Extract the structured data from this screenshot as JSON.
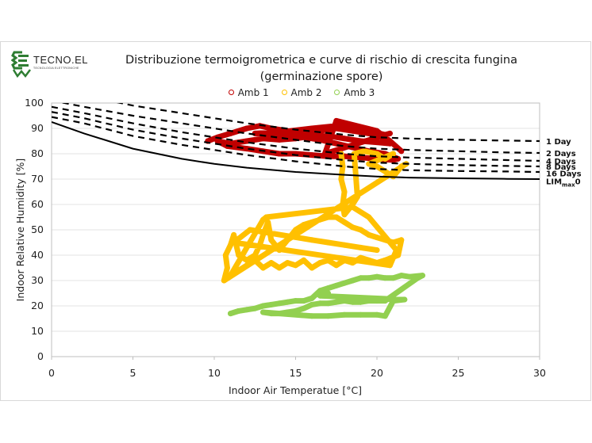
{
  "logo": {
    "name": "TECNO.EL",
    "subtitle": "TECNOLOGIA ELETTRONICHE",
    "color": "#2e7d32"
  },
  "chart_data": {
    "type": "scatter",
    "title": "Distribuzione termoigrometrica e curve di rischio di crescita fungina",
    "subtitle": "(germinazione spore)",
    "xlabel": "Indoor Air Temperatue [°C]",
    "ylabel": "Indoor Relative Humidity [%]",
    "xlim": [
      0,
      30
    ],
    "ylim": [
      0,
      100
    ],
    "xticks": [
      0,
      5,
      10,
      15,
      20,
      25,
      30
    ],
    "yticks": [
      0,
      10,
      20,
      30,
      40,
      50,
      60,
      70,
      80,
      90,
      100
    ],
    "grid": "horizontal",
    "legend_position": "top-center",
    "series": [
      {
        "name": "Amb 1",
        "color": "#c00000",
        "marker": "open-circle",
        "points": [
          [
            9.6,
            85
          ],
          [
            10.2,
            86.5
          ],
          [
            11,
            88
          ],
          [
            12,
            90
          ],
          [
            12.8,
            91
          ],
          [
            13.5,
            90
          ],
          [
            14.5,
            89
          ],
          [
            15.5,
            88.5
          ],
          [
            16.5,
            89
          ],
          [
            17.5,
            90
          ],
          [
            18.5,
            89
          ],
          [
            19.5,
            88
          ],
          [
            20.5,
            86
          ],
          [
            20.8,
            84
          ],
          [
            20,
            84.5
          ],
          [
            19,
            85
          ],
          [
            18,
            86
          ],
          [
            17,
            87
          ],
          [
            16,
            87
          ],
          [
            15,
            86
          ],
          [
            14,
            85.5
          ],
          [
            13,
            86
          ],
          [
            12,
            85
          ],
          [
            11,
            84
          ],
          [
            10.2,
            85
          ],
          [
            10.8,
            83
          ],
          [
            12,
            82
          ],
          [
            13,
            81
          ],
          [
            14,
            80
          ],
          [
            15,
            80
          ],
          [
            16,
            79.5
          ],
          [
            17,
            79
          ],
          [
            18,
            79
          ],
          [
            19,
            78.5
          ],
          [
            20,
            78
          ],
          [
            21,
            77.5
          ],
          [
            21.3,
            78
          ],
          [
            20.5,
            80
          ],
          [
            19.5,
            81
          ],
          [
            18.5,
            82.5
          ],
          [
            17.5,
            84
          ],
          [
            16.5,
            85.5
          ],
          [
            15.5,
            86.5
          ],
          [
            14.5,
            87
          ],
          [
            13.5,
            87.5
          ],
          [
            12.5,
            88
          ],
          [
            14,
            88.5
          ],
          [
            16,
            90
          ],
          [
            17.5,
            91
          ],
          [
            18.5,
            90
          ],
          [
            19.5,
            89
          ],
          [
            20.5,
            87.5
          ],
          [
            20.8,
            88
          ],
          [
            19.8,
            86
          ],
          [
            18.8,
            84
          ],
          [
            17.8,
            82
          ],
          [
            16.8,
            80
          ],
          [
            17.5,
            93
          ],
          [
            20,
            89
          ],
          [
            20.8,
            85
          ],
          [
            21.5,
            81
          ]
        ]
      },
      {
        "name": "Amb 2",
        "color": "#ffc000",
        "marker": "open-circle",
        "points": [
          [
            17.8,
            80
          ],
          [
            17.9,
            75
          ],
          [
            17.8,
            70
          ],
          [
            18,
            65
          ],
          [
            17.9,
            60
          ],
          [
            18,
            56
          ],
          [
            18.5,
            60
          ],
          [
            18.8,
            63
          ],
          [
            18.6,
            80
          ],
          [
            19.2,
            81
          ],
          [
            20,
            80
          ],
          [
            20.5,
            78
          ],
          [
            21,
            80
          ],
          [
            19.5,
            76
          ],
          [
            20,
            75
          ],
          [
            20.5,
            73
          ],
          [
            21,
            71
          ],
          [
            21.5,
            75
          ],
          [
            21.8,
            76
          ],
          [
            10.6,
            30
          ],
          [
            10.8,
            35
          ],
          [
            10.7,
            40
          ],
          [
            11,
            44
          ],
          [
            11.2,
            48
          ],
          [
            11.5,
            40
          ],
          [
            12,
            38
          ],
          [
            12.5,
            40
          ],
          [
            12.8,
            44
          ],
          [
            13,
            48
          ],
          [
            13.3,
            53
          ],
          [
            13.5,
            46
          ],
          [
            14,
            42
          ],
          [
            14.5,
            46
          ],
          [
            15,
            50
          ],
          [
            15.5,
            52
          ],
          [
            16,
            53
          ],
          [
            16.5,
            54
          ],
          [
            17,
            55
          ],
          [
            17.5,
            55
          ],
          [
            18,
            53
          ],
          [
            18.5,
            51
          ],
          [
            19,
            50
          ],
          [
            19.5,
            48
          ],
          [
            20,
            47
          ],
          [
            20.5,
            46
          ],
          [
            21,
            45
          ],
          [
            21.5,
            46
          ],
          [
            21.3,
            40
          ],
          [
            20.5,
            38
          ],
          [
            20,
            37
          ],
          [
            19.5,
            38
          ],
          [
            19,
            39
          ],
          [
            18.5,
            37
          ],
          [
            18,
            38
          ],
          [
            17.5,
            36
          ],
          [
            17,
            38
          ],
          [
            16.5,
            37
          ],
          [
            16,
            35
          ],
          [
            15.5,
            38
          ],
          [
            15,
            36
          ],
          [
            14.5,
            37
          ],
          [
            14,
            35
          ],
          [
            13.5,
            37
          ],
          [
            13,
            35
          ],
          [
            12.5,
            38
          ],
          [
            12,
            36
          ],
          [
            11.5,
            34
          ],
          [
            11,
            32
          ],
          [
            13,
            54
          ],
          [
            13.2,
            55
          ],
          [
            18.5,
            59
          ],
          [
            19.5,
            55
          ],
          [
            21.2,
            42
          ],
          [
            20.8,
            36
          ],
          [
            11.2,
            45
          ],
          [
            12.2,
            50
          ],
          [
            16,
            46
          ],
          [
            17,
            45
          ],
          [
            18,
            44
          ],
          [
            19,
            43
          ],
          [
            20,
            42
          ]
        ]
      },
      {
        "name": "Amb 3",
        "color": "#92d050",
        "marker": "open-circle",
        "points": [
          [
            11,
            17
          ],
          [
            11.5,
            18
          ],
          [
            12,
            18.5
          ],
          [
            12.5,
            19
          ],
          [
            13,
            20
          ],
          [
            13.5,
            20.5
          ],
          [
            14,
            21
          ],
          [
            14.5,
            21.5
          ],
          [
            15,
            22
          ],
          [
            15.5,
            22
          ],
          [
            16,
            23
          ],
          [
            16.5,
            26
          ],
          [
            17,
            27
          ],
          [
            17.5,
            28
          ],
          [
            18,
            29
          ],
          [
            18.5,
            30
          ],
          [
            19,
            31
          ],
          [
            19.5,
            31
          ],
          [
            20,
            31.5
          ],
          [
            20.5,
            31
          ],
          [
            21,
            31
          ],
          [
            21.5,
            32
          ],
          [
            22,
            31.5
          ],
          [
            22.8,
            32
          ],
          [
            22.5,
            31
          ],
          [
            20.5,
            22
          ],
          [
            20,
            22
          ],
          [
            19.5,
            22
          ],
          [
            19,
            21.5
          ],
          [
            18.5,
            21.5
          ],
          [
            18,
            22
          ],
          [
            17.5,
            21.5
          ],
          [
            17,
            21
          ],
          [
            16.5,
            21
          ],
          [
            16,
            20.5
          ],
          [
            15.5,
            19
          ],
          [
            15,
            18
          ],
          [
            14.5,
            17.5
          ],
          [
            14,
            17
          ],
          [
            13.5,
            17
          ],
          [
            13,
            17.5
          ],
          [
            16,
            16
          ],
          [
            17,
            16
          ],
          [
            18,
            16.5
          ],
          [
            19,
            16.5
          ],
          [
            20,
            16.5
          ],
          [
            20.5,
            16
          ],
          [
            21,
            22
          ],
          [
            21.7,
            22.5
          ],
          [
            16.5,
            24
          ],
          [
            17,
            25
          ]
        ]
      }
    ],
    "risk_curves": [
      {
        "name": "1 Day",
        "style": "dashed",
        "x": [
          0,
          2,
          5,
          8,
          10,
          12,
          15,
          18,
          20,
          22,
          25,
          28,
          30
        ],
        "y": [
          106,
          103,
          99,
          96,
          94,
          92,
          89.5,
          87.5,
          86.5,
          86,
          85.5,
          85.2,
          85
        ]
      },
      {
        "name": "2 Days",
        "style": "dashed",
        "x": [
          0,
          2,
          5,
          8,
          10,
          12,
          15,
          18,
          20,
          22,
          25,
          28,
          30
        ],
        "y": [
          101,
          98.5,
          95,
          92,
          90,
          88,
          85.5,
          83,
          82,
          81.5,
          81,
          80.5,
          80.3
        ]
      },
      {
        "name": "4 Days",
        "style": "dashed",
        "x": [
          0,
          2,
          5,
          8,
          10,
          12,
          15,
          18,
          20,
          22,
          25,
          28,
          30
        ],
        "y": [
          98.5,
          96,
          92,
          88.5,
          86.5,
          84.5,
          82,
          80,
          79,
          78.5,
          78,
          77.5,
          77.2
        ]
      },
      {
        "name": "8 Days",
        "style": "dashed",
        "x": [
          0,
          2,
          5,
          8,
          10,
          12,
          15,
          18,
          20,
          22,
          25,
          28,
          30
        ],
        "y": [
          96.5,
          94,
          89.5,
          86,
          84,
          82,
          79.5,
          77.5,
          76.5,
          76,
          75.5,
          75.2,
          75
        ]
      },
      {
        "name": "16 Days",
        "style": "dashed",
        "x": [
          0,
          2,
          5,
          8,
          10,
          12,
          15,
          18,
          20,
          22,
          25,
          28,
          30
        ],
        "y": [
          94.5,
          92,
          87,
          83.5,
          81.5,
          79.5,
          77,
          75,
          74,
          73.5,
          73.2,
          73,
          72.8
        ]
      },
      {
        "name": "LIMmax0",
        "style": "solid",
        "x": [
          0,
          2,
          5,
          8,
          10,
          12,
          15,
          18,
          20,
          22,
          25,
          28,
          30
        ],
        "y": [
          92.5,
          88,
          82,
          78,
          76,
          74.5,
          72.8,
          71.7,
          71,
          70.6,
          70.3,
          70.1,
          70
        ]
      }
    ],
    "curve_labels": [
      {
        "text": "1 Day",
        "y": 85
      },
      {
        "text": "2 Days",
        "y": 80.3
      },
      {
        "text": "4 Days",
        "y": 77.2
      },
      {
        "text": "8 Days",
        "y": 75
      },
      {
        "text": "16 Days",
        "y": 72.3
      },
      {
        "text": "LIM",
        "sub": "max",
        "suffix": "0",
        "y": 69.2
      }
    ]
  }
}
